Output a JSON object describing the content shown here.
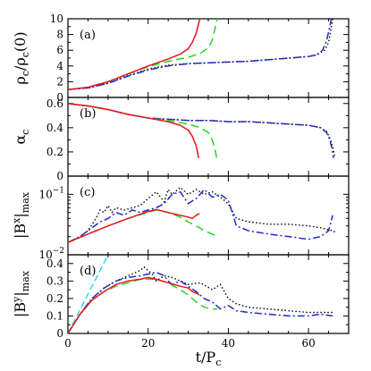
{
  "chart_data": {
    "type": "line",
    "xlabel": {
      "main": "t/P",
      "sub": "c"
    },
    "xlim": [
      0,
      70
    ],
    "x_ticks": [
      "0",
      "20",
      "40",
      "60"
    ],
    "series_styles": [
      {
        "id": "red",
        "color": "#e8141e",
        "dash": ""
      },
      {
        "id": "green",
        "color": "#27d61b",
        "dash": "9,5"
      },
      {
        "id": "blue",
        "color": "#1f2bc6",
        "dash": "8,3,2,3"
      },
      {
        "id": "black",
        "color": "#000000",
        "dash": "1.5,2.5"
      },
      {
        "id": "cyan",
        "color": "#2fd4e8",
        "dash": "7,4"
      }
    ],
    "panels": [
      {
        "id": "a",
        "tag": "(a)",
        "ylabel_parts": [
          "ρ",
          "c",
          "/ρ",
          "c",
          "(0)"
        ],
        "scale": "linear",
        "ylim": [
          0,
          10
        ],
        "y_ticks": [
          "0",
          "2",
          "4",
          "6",
          "8",
          "10"
        ],
        "series": [
          {
            "style": "black",
            "x": [
              0,
              5,
              10,
              15,
              20,
              25,
              30,
              35,
              40,
              45,
              50,
              55,
              60,
              62,
              64,
              65,
              65.5,
              66
            ],
            "y": [
              1.0,
              1.2,
              1.8,
              2.8,
              3.6,
              4.1,
              4.3,
              4.4,
              4.5,
              4.6,
              4.8,
              5.0,
              5.2,
              5.4,
              6.0,
              7.0,
              8.5,
              10
            ]
          },
          {
            "style": "blue",
            "x": [
              0,
              5,
              10,
              15,
              20,
              25,
              30,
              35,
              40,
              45,
              50,
              55,
              60,
              62,
              63.5,
              64.5,
              65.2,
              65.7
            ],
            "y": [
              1.0,
              1.2,
              1.8,
              2.7,
              3.5,
              4.0,
              4.3,
              4.4,
              4.5,
              4.6,
              4.8,
              5.0,
              5.2,
              5.4,
              6.0,
              7.2,
              8.8,
              10
            ]
          },
          {
            "style": "green",
            "x": [
              0,
              5,
              10,
              15,
              20,
              25,
              30,
              33,
              35,
              36,
              36.7,
              37.2
            ],
            "y": [
              1.0,
              1.3,
              2.0,
              3.0,
              3.9,
              4.6,
              5.1,
              5.6,
              6.3,
              7.3,
              8.8,
              10
            ]
          },
          {
            "style": "red",
            "x": [
              0,
              5,
              10,
              15,
              20,
              25,
              28,
              30,
              31,
              32,
              32.5,
              32.9
            ],
            "y": [
              1.0,
              1.3,
              2.0,
              3.0,
              4.0,
              4.9,
              5.5,
              6.2,
              7.0,
              8.2,
              9.2,
              10
            ]
          }
        ]
      },
      {
        "id": "b",
        "tag": "(b)",
        "ylabel_parts": [
          "α",
          "c"
        ],
        "scale": "linear",
        "ylim": [
          0,
          0.65
        ],
        "y_ticks": [
          "0",
          "0.2",
          "0.4",
          "0.6"
        ],
        "series": [
          {
            "style": "black",
            "x": [
              0,
              2,
              5,
              10,
              15,
              20,
              25,
              30,
              35,
              40,
              45,
              50,
              55,
              60,
              63,
              64.5,
              65.5,
              66.2,
              66.6
            ],
            "y": [
              0.6,
              0.59,
              0.58,
              0.55,
              0.51,
              0.48,
              0.47,
              0.46,
              0.46,
              0.45,
              0.45,
              0.44,
              0.43,
              0.42,
              0.4,
              0.37,
              0.3,
              0.22,
              0.15
            ]
          },
          {
            "style": "blue",
            "x": [
              0,
              2,
              5,
              10,
              15,
              20,
              25,
              30,
              35,
              40,
              45,
              50,
              55,
              60,
              63,
              64.5,
              65.3,
              65.9,
              66.2
            ],
            "y": [
              0.6,
              0.59,
              0.58,
              0.55,
              0.51,
              0.48,
              0.47,
              0.46,
              0.46,
              0.45,
              0.45,
              0.44,
              0.43,
              0.42,
              0.4,
              0.36,
              0.3,
              0.22,
              0.15
            ]
          },
          {
            "style": "green",
            "x": [
              0,
              5,
              10,
              15,
              20,
              25,
              30,
              33,
              35,
              36,
              36.8,
              37.2
            ],
            "y": [
              0.6,
              0.58,
              0.55,
              0.51,
              0.48,
              0.46,
              0.43,
              0.4,
              0.36,
              0.3,
              0.2,
              0.13
            ]
          },
          {
            "style": "red",
            "x": [
              0,
              5,
              10,
              15,
              20,
              25,
              28,
              30,
              31,
              32,
              32.6
            ],
            "y": [
              0.6,
              0.58,
              0.55,
              0.51,
              0.48,
              0.45,
              0.42,
              0.38,
              0.33,
              0.25,
              0.15
            ]
          }
        ]
      },
      {
        "id": "c",
        "tag": "(c)",
        "ylabel_parts": [
          "|B",
          "x",
          "|",
          "max"
        ],
        "scale": "log",
        "ylim": [
          0.01,
          0.2
        ],
        "y_ticks": [
          {
            "value": 0.01,
            "mantissa": "10",
            "exp": "−2"
          },
          {
            "value": 0.1,
            "mantissa": "10",
            "exp": "−1"
          }
        ],
        "series": [
          {
            "style": "black",
            "x": [
              0,
              3,
              5,
              7,
              8,
              9,
              10,
              11,
              12,
              14,
              16,
              18,
              20,
              22,
              24,
              25,
              26,
              28,
              30,
              32,
              34,
              36,
              38,
              40,
              42,
              45,
              50,
              55,
              60,
              63,
              66,
              67
            ],
            "y": [
              0.016,
              0.02,
              0.025,
              0.04,
              0.055,
              0.05,
              0.065,
              0.05,
              0.06,
              0.055,
              0.06,
              0.065,
              0.085,
              0.11,
              0.075,
              0.12,
              0.1,
              0.13,
              0.1,
              0.12,
              0.1,
              0.11,
              0.09,
              0.07,
              0.04,
              0.035,
              0.032,
              0.032,
              0.03,
              0.028,
              0.025,
              0.023
            ]
          },
          {
            "style": "blue",
            "x": [
              0,
              3,
              5,
              8,
              10,
              12,
              14,
              16,
              18,
              20,
              22,
              24,
              26,
              28,
              30,
              32,
              34,
              36,
              38,
              40,
              42,
              45,
              50,
              55,
              60,
              63,
              65,
              66
            ],
            "y": [
              0.016,
              0.02,
              0.025,
              0.035,
              0.04,
              0.05,
              0.045,
              0.055,
              0.05,
              0.055,
              0.06,
              0.07,
              0.1,
              0.11,
              0.07,
              0.085,
              0.12,
              0.09,
              0.1,
              0.08,
              0.03,
              0.025,
              0.022,
              0.02,
              0.018,
              0.02,
              0.025,
              0.045
            ]
          },
          {
            "style": "green",
            "x": [
              0,
              5,
              10,
              15,
              20,
              22,
              25,
              28,
              30,
              32,
              34,
              36,
              37.2
            ],
            "y": [
              0.016,
              0.022,
              0.03,
              0.04,
              0.05,
              0.055,
              0.05,
              0.042,
              0.035,
              0.03,
              0.025,
              0.022,
              0.02
            ]
          },
          {
            "style": "red",
            "x": [
              0,
              5,
              10,
              15,
              20,
              22,
              25,
              28,
              30,
              31,
              32,
              32.8
            ],
            "y": [
              0.016,
              0.022,
              0.03,
              0.04,
              0.052,
              0.056,
              0.05,
              0.045,
              0.042,
              0.04,
              0.045,
              0.048
            ]
          }
        ]
      },
      {
        "id": "d",
        "tag": "(d)",
        "ylabel_parts": [
          "|B",
          "y",
          "|",
          "max"
        ],
        "scale": "linear",
        "ylim": [
          0,
          0.45
        ],
        "y_ticks": [
          "0",
          "0.1",
          "0.2",
          "0.3",
          "0.4"
        ],
        "series": [
          {
            "style": "cyan",
            "x": [
              0,
              10
            ],
            "y": [
              0,
              0.45
            ]
          },
          {
            "style": "black",
            "x": [
              0,
              3,
              6,
              9,
              12,
              15,
              18,
              19,
              20,
              21,
              22,
              24,
              26,
              28,
              30,
              33,
              36,
              38,
              40,
              42,
              45,
              50,
              55,
              60,
              63,
              66
            ],
            "y": [
              0.0,
              0.11,
              0.2,
              0.26,
              0.3,
              0.33,
              0.36,
              0.38,
              0.36,
              0.34,
              0.3,
              0.33,
              0.32,
              0.3,
              0.28,
              0.29,
              0.25,
              0.28,
              0.2,
              0.17,
              0.15,
              0.14,
              0.13,
              0.12,
              0.12,
              0.12
            ]
          },
          {
            "style": "blue",
            "x": [
              0,
              3,
              6,
              9,
              12,
              15,
              18,
              20,
              22,
              24,
              25,
              26,
              28,
              30,
              32,
              34,
              36,
              38,
              40,
              42,
              45,
              50,
              55,
              60,
              63,
              66
            ],
            "y": [
              0.0,
              0.11,
              0.2,
              0.26,
              0.3,
              0.32,
              0.33,
              0.34,
              0.35,
              0.33,
              0.3,
              0.28,
              0.3,
              0.27,
              0.24,
              0.2,
              0.18,
              0.14,
              0.16,
              0.13,
              0.12,
              0.11,
              0.1,
              0.1,
              0.11,
              0.1
            ]
          },
          {
            "style": "green",
            "x": [
              0,
              3,
              6,
              9,
              12,
              15,
              18,
              20,
              22,
              25,
              28,
              30,
              32,
              34,
              36,
              37.2
            ],
            "y": [
              0.0,
              0.11,
              0.19,
              0.24,
              0.27,
              0.29,
              0.31,
              0.31,
              0.31,
              0.29,
              0.25,
              0.22,
              0.18,
              0.15,
              0.14,
              0.14
            ]
          },
          {
            "style": "red",
            "x": [
              0,
              3,
              6,
              9,
              12,
              15,
              18,
              20,
              22,
              25,
              28,
              30,
              31,
              32,
              32.8
            ],
            "y": [
              0.0,
              0.11,
              0.19,
              0.24,
              0.28,
              0.3,
              0.31,
              0.32,
              0.31,
              0.29,
              0.27,
              0.26,
              0.24,
              0.23,
              0.22
            ]
          }
        ]
      }
    ]
  }
}
